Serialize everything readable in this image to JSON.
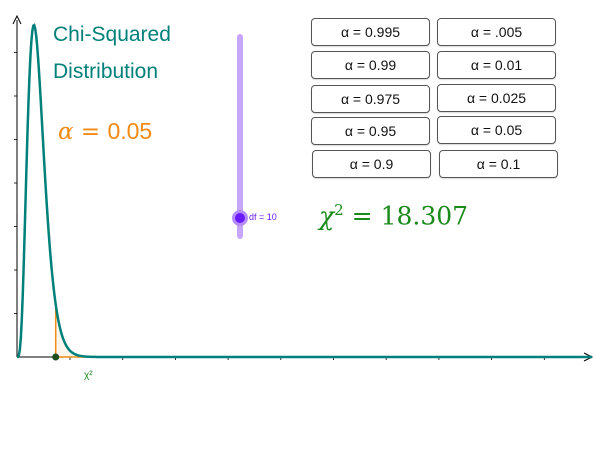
{
  "title": {
    "line1": "Chi-Squared",
    "line2": "Distribution"
  },
  "alpha_display": {
    "symbol": "α",
    "equals": "=",
    "value": "0.05"
  },
  "chi_display": {
    "symbol": "χ",
    "exponent": "2",
    "equals": "=",
    "value": "18.307"
  },
  "buttons": {
    "left": [
      {
        "label": "α = 0.995"
      },
      {
        "label": "α = 0.99"
      },
      {
        "label": "α = 0.975"
      },
      {
        "label": "α = 0.95"
      },
      {
        "label": "α = 0.9"
      }
    ],
    "right": [
      {
        "label": "α = .005"
      },
      {
        "label": "α = 0.01"
      },
      {
        "label": "α = 0.025"
      },
      {
        "label": "α = 0.05"
      },
      {
        "label": "α = 0.1"
      }
    ]
  },
  "slider": {
    "label": "df = 10",
    "df": 10,
    "fill_fraction": 0.14
  },
  "graph": {
    "point_label": "χ²",
    "df": 10,
    "critical_value": 18.307,
    "x_range": [
      0,
      272
    ],
    "y_range": [
      0,
      0.1
    ]
  },
  "colors": {
    "curve": "#00807a",
    "tail": "#f28a14",
    "alpha_text": "#f28a14",
    "chi_text": "#1a8a1a",
    "slider_track": "#c6a6ff",
    "slider_handle": "#6a1aff",
    "axis": "#000000"
  }
}
